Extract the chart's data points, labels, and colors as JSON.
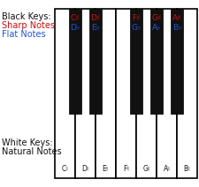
{
  "title_black": "Black Keys:",
  "title_sharp": "Sharp Notes",
  "title_flat": "Flat Notes",
  "title_white": "White Keys:",
  "title_natural": "Natural Notes",
  "sharp_list": [
    "C♯",
    "D♯",
    "F♯",
    "G♯",
    "A♯"
  ],
  "flat_list": [
    "D♭",
    "E♭",
    "G♭",
    "A♭",
    "B♭"
  ],
  "natural_notes": [
    "C♮",
    "D♮",
    "E♮",
    "F♮",
    "G♮",
    "A♮",
    "B♮"
  ],
  "white_key_color": "#ffffff",
  "black_key_color": "#111111",
  "sharp_color": "#cc1111",
  "flat_color": "#2255cc",
  "natural_color": "#111111",
  "label_color": "#111111",
  "background_color": "#ffffff",
  "n_white": 7,
  "black_after_white": [
    0,
    1,
    3,
    4,
    5
  ]
}
